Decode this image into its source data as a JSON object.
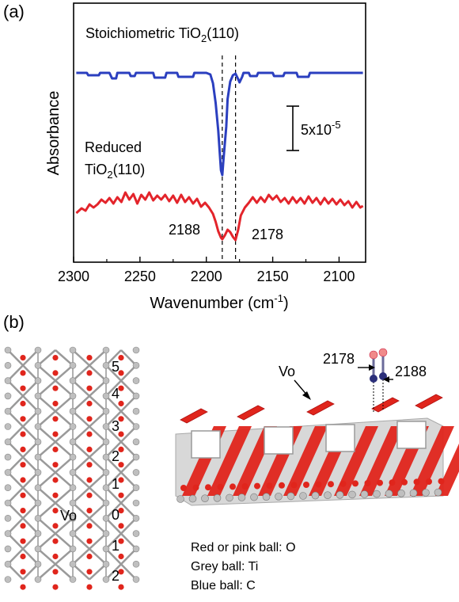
{
  "panel_a": {
    "label": "(a)",
    "ylabel": "Absorbance",
    "xlabel_main": "Wavenumber (cm",
    "xlabel_sup": "-1",
    "xlabel_close": ")",
    "series1_label_main": "Stoichiometric TiO",
    "series1_label_sub": "2",
    "series1_label_end": "(110)",
    "series2_label_line1": "Reduced",
    "series2_label_main": "TiO",
    "series2_label_sub": "2",
    "series2_label_end": "(110)",
    "scale_bar_main": "5x10",
    "scale_bar_sup": "-5",
    "peak_label_1": "2188",
    "peak_label_2": "2178"
  },
  "chart_data": {
    "type": "line",
    "title": "",
    "xlabel": "Wavenumber (cm-1)",
    "ylabel": "Absorbance",
    "xlim": [
      2300,
      2080
    ],
    "xticks": [
      2300,
      2250,
      2200,
      2150,
      2100
    ],
    "scale_bar": "5x10-5",
    "dashed_lines": [
      2188,
      2178
    ],
    "series": [
      {
        "name": "Stoichiometric TiO2(110)",
        "color": "#2b3fbf",
        "offset": 92,
        "points": [
          [
            2298,
            92
          ],
          [
            2290,
            92
          ],
          [
            2289,
            95
          ],
          [
            2281,
            95
          ],
          [
            2280,
            92
          ],
          [
            2273,
            92
          ],
          [
            2271,
            99
          ],
          [
            2268,
            99
          ],
          [
            2267,
            92
          ],
          [
            2258,
            92
          ],
          [
            2257,
            96
          ],
          [
            2254,
            96
          ],
          [
            2253,
            92
          ],
          [
            2240,
            92
          ],
          [
            2239,
            98
          ],
          [
            2231,
            98
          ],
          [
            2230,
            92
          ],
          [
            2222,
            92
          ],
          [
            2221,
            97
          ],
          [
            2210,
            97
          ],
          [
            2209,
            92
          ],
          [
            2200,
            92
          ],
          [
            2197,
            94
          ],
          [
            2195,
            105
          ],
          [
            2193,
            130
          ],
          [
            2191,
            165
          ],
          [
            2190,
            190
          ],
          [
            2189,
            215
          ],
          [
            2188,
            221
          ],
          [
            2187,
            200
          ],
          [
            2185,
            160
          ],
          [
            2184,
            125
          ],
          [
            2182,
            103
          ],
          [
            2180,
            95
          ],
          [
            2178,
            93
          ],
          [
            2176,
            100
          ],
          [
            2175,
            104
          ],
          [
            2173,
            97
          ],
          [
            2172,
            92
          ],
          [
            2168,
            92
          ],
          [
            2167,
            96
          ],
          [
            2162,
            96
          ],
          [
            2161,
            92
          ],
          [
            2150,
            92
          ],
          [
            2149,
            96
          ],
          [
            2142,
            96
          ],
          [
            2141,
            92
          ],
          [
            2132,
            92
          ],
          [
            2131,
            97
          ],
          [
            2123,
            97
          ],
          [
            2122,
            92
          ],
          [
            2082,
            92
          ]
        ]
      },
      {
        "name": "Reduced TiO2(110)",
        "color": "#e3242b",
        "offset": 262,
        "points": [
          [
            2298,
            269
          ],
          [
            2294,
            263
          ],
          [
            2291,
            266
          ],
          [
            2288,
            258
          ],
          [
            2285,
            262
          ],
          [
            2282,
            258
          ],
          [
            2279,
            252
          ],
          [
            2276,
            256
          ],
          [
            2273,
            250
          ],
          [
            2270,
            257
          ],
          [
            2267,
            249
          ],
          [
            2264,
            255
          ],
          [
            2261,
            243
          ],
          [
            2258,
            252
          ],
          [
            2255,
            245
          ],
          [
            2252,
            257
          ],
          [
            2249,
            246
          ],
          [
            2246,
            252
          ],
          [
            2243,
            243
          ],
          [
            2240,
            253
          ],
          [
            2237,
            247
          ],
          [
            2234,
            252
          ],
          [
            2231,
            246
          ],
          [
            2228,
            254
          ],
          [
            2225,
            247
          ],
          [
            2222,
            256
          ],
          [
            2219,
            246
          ],
          [
            2216,
            255
          ],
          [
            2213,
            249
          ],
          [
            2210,
            257
          ],
          [
            2207,
            251
          ],
          [
            2204,
            261
          ],
          [
            2201,
            256
          ],
          [
            2198,
            262
          ],
          [
            2195,
            270
          ],
          [
            2193,
            280
          ],
          [
            2191,
            292
          ],
          [
            2189,
            300
          ],
          [
            2188,
            302
          ],
          [
            2186,
            297
          ],
          [
            2184,
            290
          ],
          [
            2182,
            293
          ],
          [
            2180,
            299
          ],
          [
            2178,
            303
          ],
          [
            2176,
            290
          ],
          [
            2174,
            272
          ],
          [
            2171,
            262
          ],
          [
            2168,
            256
          ],
          [
            2165,
            249
          ],
          [
            2162,
            256
          ],
          [
            2159,
            249
          ],
          [
            2156,
            255
          ],
          [
            2153,
            246
          ],
          [
            2150,
            252
          ],
          [
            2147,
            247
          ],
          [
            2144,
            255
          ],
          [
            2141,
            250
          ],
          [
            2138,
            257
          ],
          [
            2135,
            249
          ],
          [
            2132,
            256
          ],
          [
            2129,
            250
          ],
          [
            2126,
            257
          ],
          [
            2123,
            248
          ],
          [
            2120,
            256
          ],
          [
            2117,
            250
          ],
          [
            2114,
            258
          ],
          [
            2111,
            250
          ],
          [
            2108,
            257
          ],
          [
            2105,
            251
          ],
          [
            2102,
            258
          ],
          [
            2099,
            252
          ],
          [
            2096,
            259
          ],
          [
            2093,
            254
          ],
          [
            2090,
            262
          ],
          [
            2087,
            255
          ],
          [
            2084,
            262
          ],
          [
            2082,
            260
          ]
        ]
      }
    ]
  },
  "panel_b": {
    "label": "(b)",
    "row_numbers": [
      "5",
      "4",
      "3",
      "2",
      "1",
      "0",
      "1",
      "2"
    ],
    "vo_label_left": "Vo",
    "vo_label_right": "Vo",
    "co_label_2178": "2178",
    "co_label_2188": "2188",
    "legend": [
      "Red or pink ball: O",
      "Grey ball: Ti",
      "Blue ball: C"
    ],
    "colors": {
      "oxygen": "#e0251c",
      "titanium": "#bfbfbf",
      "carbon": "#2b2f7a",
      "pink_oxygen": "#f08a8a"
    }
  }
}
